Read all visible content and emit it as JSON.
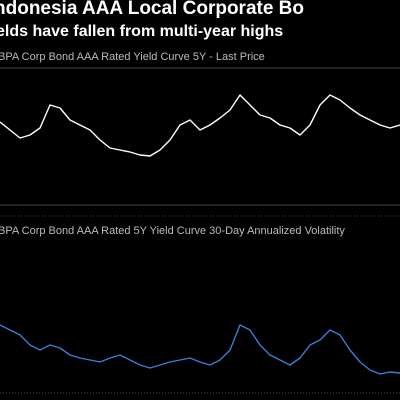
{
  "title": "ndonesia AAA Local Corporate Bo",
  "subtitle": "elds have fallen from multi-year highs",
  "chart_data": [
    {
      "type": "line",
      "title": "BPA Corp Bond AAA Rated Yield Curve 5Y - Last Price",
      "color": "#ffffff",
      "ylim": [
        0,
        70
      ],
      "values": [
        38,
        30,
        22,
        25,
        32,
        55,
        52,
        40,
        35,
        30,
        20,
        12,
        10,
        8,
        5,
        4,
        10,
        20,
        35,
        40,
        30,
        35,
        42,
        50,
        65,
        55,
        45,
        42,
        35,
        32,
        25,
        35,
        55,
        65,
        60,
        52,
        45,
        40,
        35,
        32,
        35
      ]
    },
    {
      "type": "line",
      "title": "BPA Corp Bond AAA Rated 5Y Yield Curve 30-Day Annualized Volatility",
      "color": "#3b7dd8",
      "ylim": [
        0,
        70
      ],
      "values": [
        55,
        50,
        45,
        35,
        30,
        35,
        32,
        25,
        22,
        20,
        18,
        22,
        25,
        20,
        15,
        12,
        15,
        18,
        20,
        22,
        18,
        15,
        20,
        30,
        55,
        50,
        35,
        25,
        20,
        15,
        22,
        35,
        40,
        50,
        45,
        30,
        18,
        10,
        6,
        8,
        7
      ]
    }
  ]
}
